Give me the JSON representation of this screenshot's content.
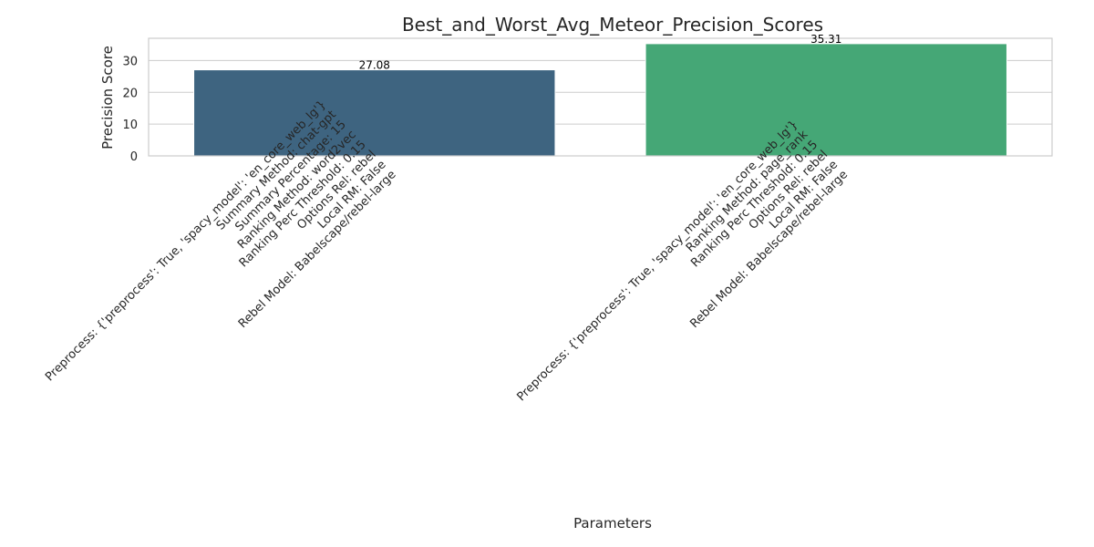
{
  "chart_data": {
    "type": "bar",
    "title": "Best_and_Worst_Avg_Meteor_Precision_Scores",
    "xlabel": "Parameters",
    "ylabel": "Precision Score",
    "ylim": [
      0,
      37
    ],
    "yticks": [
      0,
      10,
      20,
      30
    ],
    "grid": true,
    "categories": [
      [
        "Preprocess: {'preprocess': True, 'spacy_model': 'en_core_web_lg'}",
        "Summary Method: chat-gpt",
        "Summary Percentage: 15",
        "Ranking Method: word2vec",
        "Ranking Perc Threshold: 0.15",
        "Options Rel: rebel",
        "Local RM: False",
        "Rebel Model: Babelscape/rebel-large"
      ],
      [
        "Preprocess: {'preprocess': True, 'spacy_model': 'en_core_web_lg'}",
        "Ranking Method: page_rank",
        "Ranking Perc Threshold: 0.15",
        "Options Rel: rebel",
        "Local RM: False",
        "Rebel Model: Babelscape/rebel-large"
      ]
    ],
    "values": [
      27.08,
      35.31
    ],
    "value_labels": [
      "27.08",
      "35.31"
    ],
    "colors": [
      "#3e6480",
      "#45a776"
    ]
  }
}
